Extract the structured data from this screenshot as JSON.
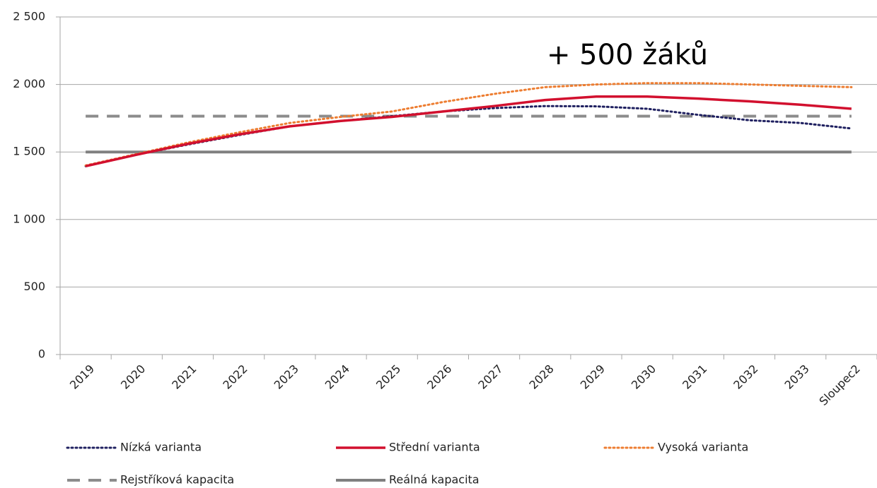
{
  "chart_data": {
    "type": "line",
    "annotation": "+ 500 žáků",
    "categories": [
      "2019",
      "2020",
      "2021",
      "2022",
      "2023",
      "2024",
      "2025",
      "2026",
      "2027",
      "2028",
      "2029",
      "2030",
      "2031",
      "2032",
      "2033",
      "Sloupec2"
    ],
    "series": [
      {
        "name": "Nízká varianta",
        "color": "#1f2060",
        "style": "dotted",
        "values": [
          1395,
          1480,
          1555,
          1625,
          1690,
          1730,
          1765,
          1800,
          1825,
          1840,
          1838,
          1820,
          1775,
          1735,
          1715,
          1674
        ]
      },
      {
        "name": "Střední varianta",
        "color": "#d2102e",
        "style": "solid",
        "values": [
          1395,
          1480,
          1560,
          1630,
          1690,
          1730,
          1760,
          1800,
          1840,
          1885,
          1910,
          1910,
          1895,
          1875,
          1850,
          1820
        ]
      },
      {
        "name": "Vysoká varianta",
        "color": "#ed7d31",
        "style": "dotted",
        "values": [
          1400,
          1485,
          1570,
          1645,
          1715,
          1760,
          1800,
          1870,
          1930,
          1980,
          2000,
          2010,
          2010,
          2000,
          1990,
          1980
        ]
      },
      {
        "name": "Rejstříková kapacita",
        "color": "#8c8c8c",
        "style": "dashed",
        "values": [
          1765,
          1765,
          1765,
          1765,
          1765,
          1765,
          1765,
          1765,
          1765,
          1765,
          1765,
          1765,
          1765,
          1765,
          1765,
          1765
        ]
      },
      {
        "name": "Reálná kapacita",
        "color": "#808080",
        "style": "thick",
        "values": [
          1500,
          1500,
          1500,
          1500,
          1500,
          1500,
          1500,
          1500,
          1500,
          1500,
          1500,
          1500,
          1500,
          1500,
          1500,
          1500
        ]
      }
    ],
    "ylim": [
      0,
      2500
    ],
    "yticks": [
      0,
      500,
      {
        "value": 1000,
        "label": "1 000"
      },
      {
        "value": 1500,
        "label": "1 500"
      },
      {
        "value": 2000,
        "label": "2 000"
      },
      {
        "value": 2500,
        "label": "2 500"
      }
    ],
    "grid": true,
    "legend": "bottom"
  }
}
